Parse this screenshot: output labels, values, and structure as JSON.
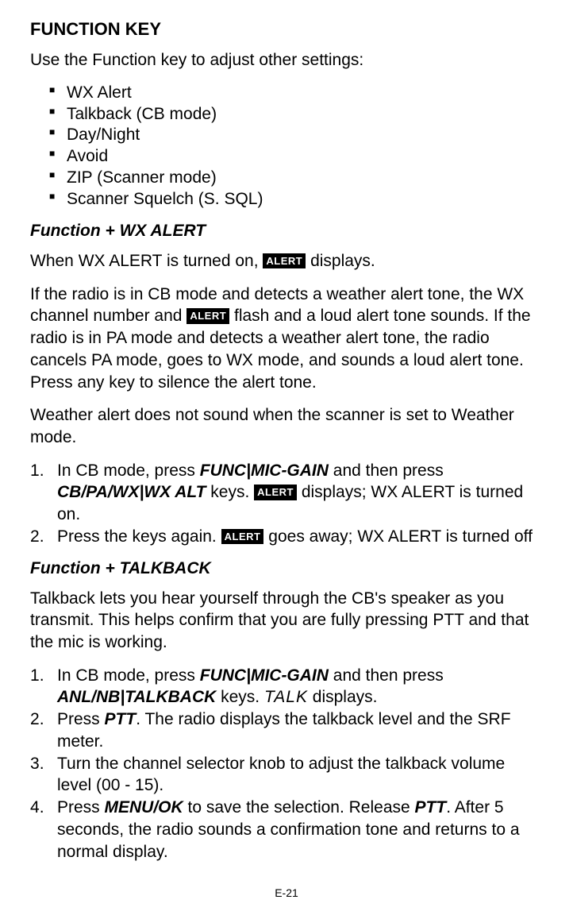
{
  "title": "FUNCTION KEY",
  "intro": "Use the Function key to adjust other settings:",
  "settings_list": [
    "WX Alert",
    "Talkback (CB mode)",
    "Day/Night",
    "Avoid",
    "ZIP (Scanner mode)",
    "Scanner Squelch (S. SQL)"
  ],
  "section1": {
    "heading": "Function + WX ALERT",
    "p1_a": "When WX ALERT is turned on, ",
    "p1_b": " displays.",
    "p2_a": "If the radio is in CB mode and detects a weather alert tone, the WX channel number and ",
    "p2_b": " flash and a loud alert tone sounds. If the radio is in PA mode and detects a weather alert tone, the radio cancels PA mode, goes to WX mode, and sounds a loud alert tone. Press any key to silence the alert tone.",
    "p3": "Weather alert does not sound when the scanner is set to Weather mode.",
    "step1_a": "In CB mode, press ",
    "step1_k1": "FUNC|MIC-GAIN",
    "step1_b": " and then press ",
    "step1_k2": "CB/PA/WX|WX ALT",
    "step1_c": " keys. ",
    "step1_d": " displays; WX ALERT is turned on.",
    "step2_a": "Press the keys again. ",
    "step2_b": " goes away; WX ALERT is turned off"
  },
  "section2": {
    "heading": "Function + TALKBACK",
    "p1": "Talkback lets you hear yourself through the CB's speaker as you transmit. This helps confirm that you are fully pressing PTT and that the mic is working.",
    "step1_a": "In CB mode, press ",
    "step1_k1": "FUNC|MIC-GAIN",
    "step1_b": " and then press ",
    "step1_k2": "ANL/NB|TALKBACK",
    "step1_c": " keys. ",
    "step1_talk": "TALK",
    "step1_d": " displays.",
    "step2_a": "Press ",
    "step2_k1": "PTT",
    "step2_b": ". The radio displays the talkback level and the SRF meter.",
    "step3": "Turn the channel selector knob to adjust the talkback volume level (00 - 15).",
    "step4_a": "Press ",
    "step4_k1": "MENU/OK",
    "step4_b": " to save the selection. Release ",
    "step4_k2": "PTT",
    "step4_c": ". After 5 seconds, the radio sounds a confirmation tone and returns to a normal display."
  },
  "alert_label": "ALERT",
  "page_number": "E-21"
}
